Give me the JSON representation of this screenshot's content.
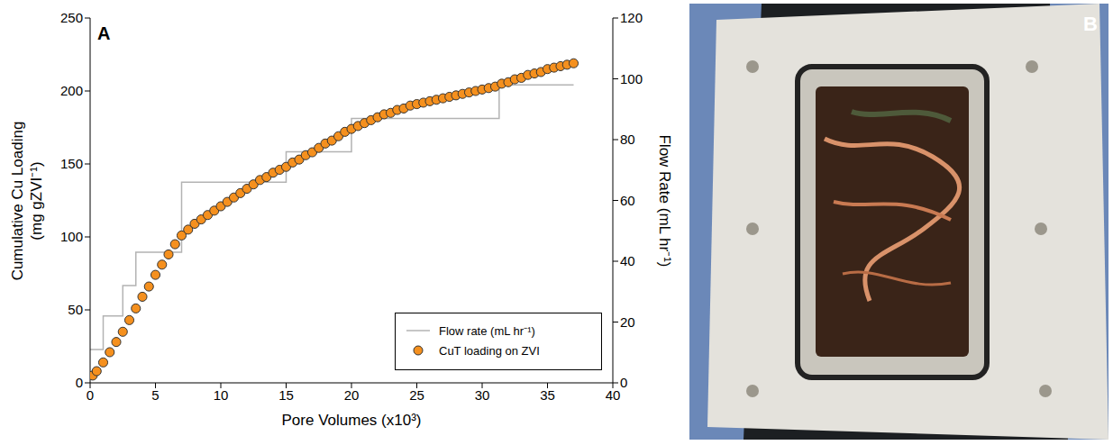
{
  "chart_data": {
    "type": "scatter",
    "panel_label": "A",
    "xlabel": "Pore Volumes (x10³)",
    "ylabel": "Cumulative Cu Loading (mg gZVI⁻¹)",
    "y2label": "Flow Rate (mL hr⁻¹)",
    "xlim": [
      0,
      40
    ],
    "xticks": [
      0,
      5,
      10,
      15,
      20,
      25,
      30,
      35,
      40
    ],
    "ylim": [
      0,
      250
    ],
    "yticks": [
      0,
      50,
      100,
      150,
      200,
      250
    ],
    "y2lim": [
      0,
      120
    ],
    "y2ticks": [
      0,
      20,
      40,
      60,
      80,
      100,
      120
    ],
    "grid": false,
    "legend": "lower right",
    "series": [
      {
        "name": "Flow rate (mL hr⁻¹)",
        "type": "line",
        "line_style": "step",
        "axis": "y2",
        "color": "#b3b3b3",
        "x": [
          0,
          1,
          2.5,
          3.5,
          7,
          15,
          20,
          31.3,
          37
        ],
        "values": [
          11,
          22,
          32,
          43,
          66,
          76,
          87,
          98,
          98
        ]
      },
      {
        "name": "CuT loading on ZVI",
        "type": "scatter",
        "marker": "circle",
        "color": "#f5901e",
        "x": [
          0.2,
          0.5,
          1,
          1.5,
          2,
          2.5,
          3,
          3.5,
          4,
          4.5,
          5,
          5.5,
          6,
          6.5,
          7,
          7.5,
          8,
          8.5,
          9,
          9.5,
          10,
          10.5,
          11,
          11.5,
          12,
          12.5,
          13,
          13.5,
          14,
          14.5,
          15,
          15.5,
          16,
          16.5,
          17,
          17.5,
          18,
          18.5,
          19,
          19.5,
          20,
          20.5,
          21,
          21.5,
          22,
          22.5,
          23,
          23.5,
          24,
          24.5,
          25,
          25.5,
          26,
          26.5,
          27,
          27.5,
          28,
          28.5,
          29,
          29.5,
          30,
          30.5,
          31,
          31.5,
          32,
          32.5,
          33,
          33.5,
          34,
          34.5,
          35,
          35.5,
          36,
          36.5,
          37
        ],
        "values": [
          5,
          8,
          14,
          21,
          28,
          35,
          43,
          51,
          59,
          66,
          74,
          81,
          88,
          95,
          101,
          105,
          109,
          112,
          115,
          118,
          121,
          124,
          127,
          130,
          133,
          136,
          139,
          141,
          144,
          146,
          148,
          151,
          153,
          156,
          158,
          161,
          164,
          166,
          169,
          172,
          174,
          176,
          178,
          180,
          182,
          184,
          185,
          187,
          188,
          190,
          191,
          192,
          193,
          194,
          195,
          196,
          197,
          198,
          199,
          200,
          201,
          202,
          203,
          205,
          206,
          208,
          209,
          211,
          212,
          213,
          215,
          216,
          217,
          218,
          219
        ]
      }
    ]
  },
  "panel_b": {
    "label": "B",
    "type": "photo"
  }
}
